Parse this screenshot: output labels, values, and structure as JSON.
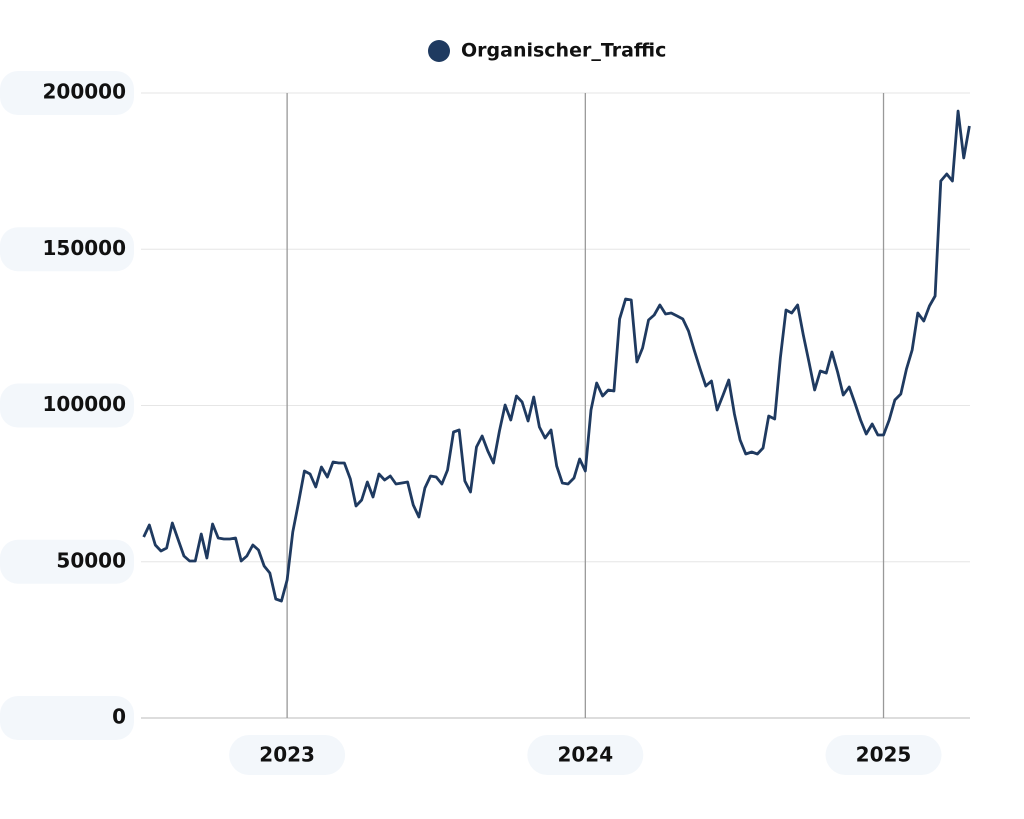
{
  "chart_data": {
    "type": "line",
    "series": [
      {
        "name": "Organischer_Traffic",
        "color": "#1f3a60",
        "values": [
          57920,
          61760,
          55360,
          53440,
          54400,
          62400,
          56960,
          51840,
          50240,
          50240,
          58880,
          51200,
          62080,
          57600,
          57280,
          57280,
          57600,
          50240,
          51840,
          55360,
          53760,
          48640,
          46400,
          38080,
          37440,
          44160,
          59520,
          68800,
          79040,
          78080,
          73920,
          80320,
          77120,
          81920,
          81600,
          81600,
          76480,
          67840,
          69760,
          75520,
          70720,
          78080,
          76160,
          77440,
          74880,
          75200,
          75520,
          68160,
          64320,
          73600,
          77440,
          77120,
          74880,
          79360,
          91520,
          92160,
          75840,
          72320,
          86720,
          90240,
          85440,
          81600,
          91840,
          100160,
          95360,
          103040,
          101120,
          95040,
          102720,
          93120,
          89600,
          92160,
          80640,
          75200,
          74880,
          76800,
          82880,
          79040,
          98560,
          107200,
          103040,
          104960,
          104640,
          127680,
          134080,
          133760,
          113920,
          118400,
          127360,
          128960,
          132160,
          129280,
          129600,
          128640,
          127680,
          123840,
          117760,
          111680,
          106240,
          107840,
          98560,
          103360,
          108160,
          97280,
          88960,
          84480,
          85120,
          84480,
          86400,
          96640,
          95680,
          115200,
          130560,
          129600,
          132160,
          122560,
          113920,
          104960,
          111040,
          110400,
          117120,
          110720,
          103360,
          105920,
          100800,
          95360,
          90880,
          94080,
          90560,
          90560,
          95360,
          101760,
          103680,
          111680,
          117760,
          129600,
          127040,
          131840,
          135040,
          171840,
          174080,
          171840,
          194240,
          179200,
          189440
        ]
      }
    ],
    "x": [
      2022.519,
      2022.538,
      2022.558,
      2022.577,
      2022.596,
      2022.615,
      2022.635,
      2022.654,
      2022.673,
      2022.692,
      2022.712,
      2022.731,
      2022.75,
      2022.769,
      2022.788,
      2022.808,
      2022.827,
      2022.846,
      2022.865,
      2022.885,
      2022.904,
      2022.923,
      2022.942,
      2022.962,
      2022.981,
      2023.0,
      2023.019,
      2023.038,
      2023.058,
      2023.077,
      2023.096,
      2023.115,
      2023.135,
      2023.154,
      2023.173,
      2023.192,
      2023.212,
      2023.231,
      2023.25,
      2023.269,
      2023.288,
      2023.308,
      2023.327,
      2023.346,
      2023.365,
      2023.385,
      2023.404,
      2023.423,
      2023.442,
      2023.462,
      2023.481,
      2023.5,
      2023.519,
      2023.538,
      2023.558,
      2023.577,
      2023.596,
      2023.615,
      2023.635,
      2023.654,
      2023.673,
      2023.692,
      2023.712,
      2023.731,
      2023.75,
      2023.769,
      2023.788,
      2023.808,
      2023.827,
      2023.846,
      2023.865,
      2023.885,
      2023.904,
      2023.923,
      2023.942,
      2023.962,
      2023.981,
      2024.0,
      2024.019,
      2024.038,
      2024.058,
      2024.077,
      2024.096,
      2024.115,
      2024.135,
      2024.154,
      2024.173,
      2024.192,
      2024.212,
      2024.231,
      2024.25,
      2024.269,
      2024.288,
      2024.308,
      2024.327,
      2024.346,
      2024.365,
      2024.385,
      2024.404,
      2024.423,
      2024.442,
      2024.462,
      2024.481,
      2024.5,
      2024.519,
      2024.538,
      2024.558,
      2024.577,
      2024.596,
      2024.615,
      2024.635,
      2024.654,
      2024.673,
      2024.692,
      2024.712,
      2024.731,
      2024.75,
      2024.769,
      2024.788,
      2024.808,
      2024.827,
      2024.846,
      2024.865,
      2024.885,
      2024.904,
      2024.923,
      2024.942,
      2024.962,
      2024.981,
      2025.0,
      2025.019,
      2025.038,
      2025.058,
      2025.077,
      2025.096,
      2025.115,
      2025.135,
      2025.154,
      2025.173,
      2025.192,
      2025.212,
      2025.231,
      2025.25,
      2025.269,
      2025.288
    ],
    "xlim": [
      2022.51,
      2025.29
    ],
    "xticks": [
      2023,
      2024,
      2025
    ],
    "ylim": [
      0,
      200000
    ],
    "yticks": [
      0,
      50000,
      100000,
      150000,
      200000
    ],
    "grid": true
  }
}
